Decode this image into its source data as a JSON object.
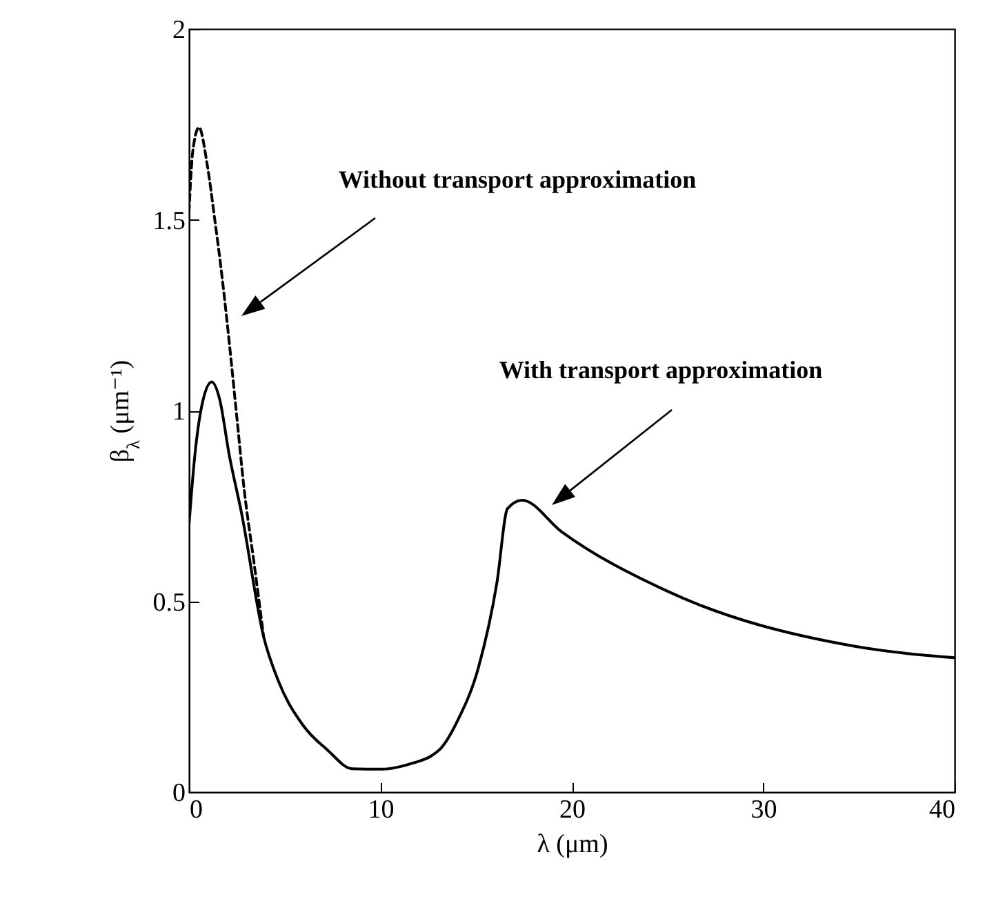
{
  "chart_data": {
    "type": "line",
    "xlabel": "λ (μm)",
    "ylabel": "β$_{λ}$ (μm⁻¹)",
    "xlim": [
      0,
      40
    ],
    "ylim": [
      0,
      2
    ],
    "xticks": [
      0,
      10,
      20,
      30,
      40
    ],
    "yticks": [
      0,
      0.5,
      1,
      1.5,
      2
    ],
    "series": [
      {
        "color": "#000000",
        "line_style": "solid",
        "x": [
          0,
          0.3,
          0.7,
          1.19,
          1.6,
          2.1,
          2.75,
          3.9,
          4.68,
          5.96,
          7.24,
          8.53,
          10.07,
          11.76,
          12.6,
          13.2,
          14.05,
          15.13,
          16.09,
          16.64,
          17.4,
          19.45,
          24.84,
          34.8,
          40
        ],
        "values": [
          0.7,
          0.88,
          1.02,
          1.075,
          1.03,
          0.884,
          0.73,
          0.407,
          0.29,
          0.175,
          0.11,
          0.061,
          0.06,
          0.077,
          0.093,
          0.117,
          0.189,
          0.328,
          0.55,
          0.743,
          0.765,
          0.683,
          0.53,
          0.382,
          0.352
        ]
      },
      {
        "color": "#000000",
        "line_style": "dashed",
        "x": [
          0,
          0.2,
          0.52,
          0.95,
          1.34,
          1.73,
          2.1,
          2.49,
          2.88,
          3.4,
          3.9
        ],
        "values": [
          1.52,
          1.68,
          1.742,
          1.645,
          1.503,
          1.349,
          1.18,
          0.987,
          0.794,
          0.6,
          0.407
        ]
      }
    ],
    "annotations": [
      "Without transport approximation",
      "With transport approximation"
    ]
  }
}
